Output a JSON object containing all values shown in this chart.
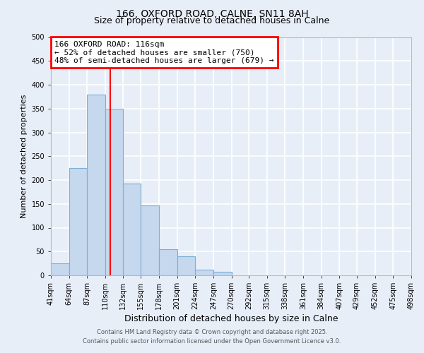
{
  "title": "166, OXFORD ROAD, CALNE, SN11 8AH",
  "subtitle": "Size of property relative to detached houses in Calne",
  "xlabel": "Distribution of detached houses by size in Calne",
  "ylabel": "Number of detached properties",
  "bar_values": [
    25,
    225,
    380,
    350,
    193,
    147,
    55,
    40,
    12,
    7,
    0,
    0,
    0,
    0,
    0,
    0,
    0,
    0,
    0,
    0
  ],
  "bin_edges": [
    41,
    64,
    87,
    110,
    132,
    155,
    178,
    201,
    224,
    247,
    270,
    292,
    315,
    338,
    361,
    384,
    407,
    429,
    452,
    475,
    498
  ],
  "tick_labels": [
    "41sqm",
    "64sqm",
    "87sqm",
    "110sqm",
    "132sqm",
    "155sqm",
    "178sqm",
    "201sqm",
    "224sqm",
    "247sqm",
    "270sqm",
    "292sqm",
    "315sqm",
    "338sqm",
    "361sqm",
    "384sqm",
    "407sqm",
    "429sqm",
    "452sqm",
    "475sqm",
    "498sqm"
  ],
  "bar_color": "#c5d8ee",
  "bar_edge_color": "#7bafd4",
  "vline_x": 116,
  "vline_color": "red",
  "annotation_text": "166 OXFORD ROAD: 116sqm\n← 52% of detached houses are smaller (750)\n48% of semi-detached houses are larger (679) →",
  "annotation_box_color": "white",
  "annotation_box_edge": "red",
  "ylim": [
    0,
    500
  ],
  "yticks": [
    0,
    50,
    100,
    150,
    200,
    250,
    300,
    350,
    400,
    450,
    500
  ],
  "background_color": "#e8eef8",
  "grid_color": "white",
  "footer1": "Contains HM Land Registry data © Crown copyright and database right 2025.",
  "footer2": "Contains public sector information licensed under the Open Government Licence v3.0.",
  "title_fontsize": 10,
  "subtitle_fontsize": 9,
  "xlabel_fontsize": 9,
  "ylabel_fontsize": 8,
  "tick_fontsize": 7,
  "footer_fontsize": 6,
  "annotation_fontsize": 8
}
